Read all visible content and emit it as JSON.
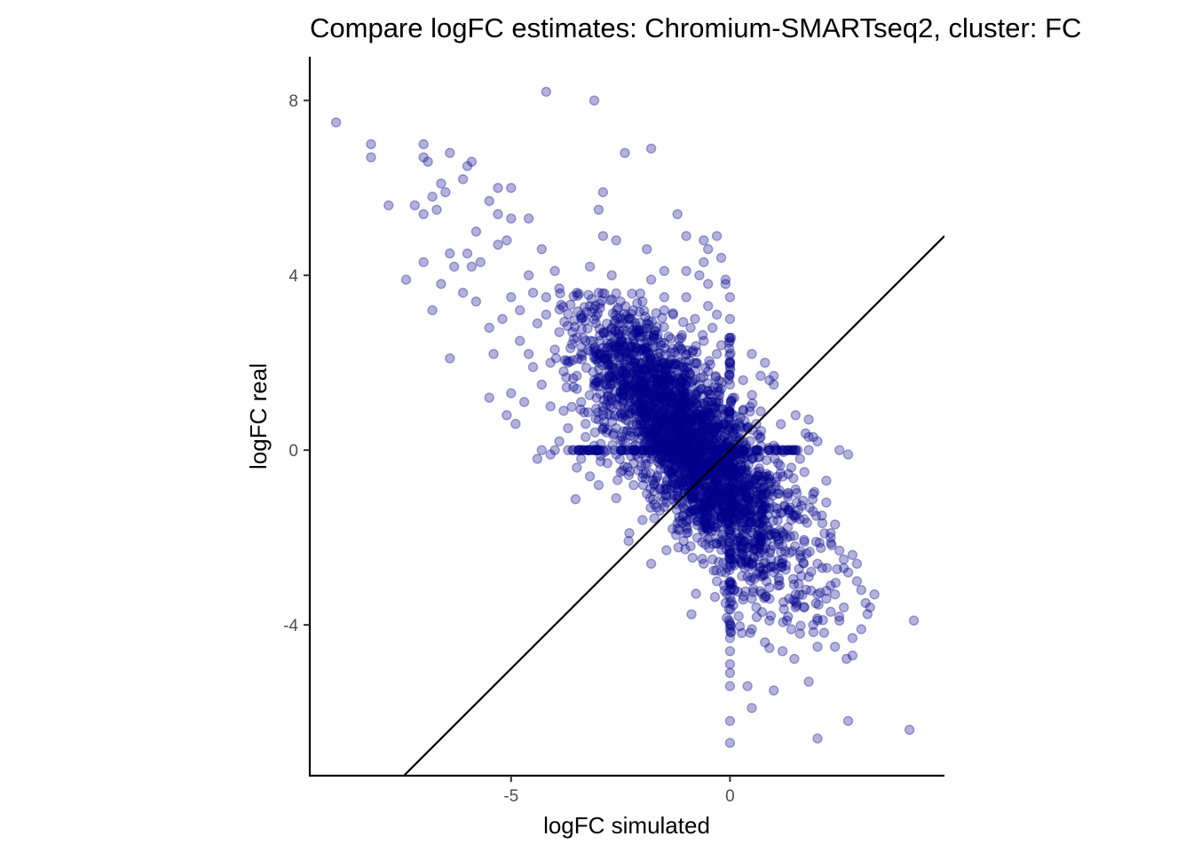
{
  "chart_data": {
    "type": "scatter",
    "title": "Compare logFC estimates: Chromium-SMARTseq2, cluster: FC",
    "xlabel": "logFC simulated",
    "ylabel": "logFC real",
    "xlim": [
      -9.6,
      4.9
    ],
    "ylim": [
      -7.45,
      9.0
    ],
    "x_ticks": [
      -5,
      0
    ],
    "x_tick_labels": [
      "-5",
      "0"
    ],
    "y_ticks": [
      -4,
      0,
      4,
      8
    ],
    "y_tick_labels": [
      "-4",
      "0",
      "4",
      "8"
    ],
    "grid": false,
    "legend": "none",
    "reference_line": {
      "slope": 1,
      "intercept": 0
    },
    "point_color": "#00008B",
    "point_opacity": 0.3,
    "points": [
      [
        -9.0,
        7.5
      ],
      [
        -8.2,
        7.0
      ],
      [
        -8.2,
        6.7
      ],
      [
        -7.0,
        7.0
      ],
      [
        -7.0,
        6.7
      ],
      [
        -6.9,
        6.6
      ],
      [
        -6.4,
        6.8
      ],
      [
        -5.9,
        6.6
      ],
      [
        -6.0,
        6.5
      ],
      [
        -6.1,
        6.2
      ],
      [
        -6.6,
        6.1
      ],
      [
        -6.5,
        5.9
      ],
      [
        -6.8,
        5.8
      ],
      [
        -6.7,
        5.5
      ],
      [
        -7.0,
        5.4
      ],
      [
        -7.2,
        5.6
      ],
      [
        -7.8,
        5.6
      ],
      [
        -5.3,
        6.0
      ],
      [
        -5.0,
        6.0
      ],
      [
        -5.5,
        5.7
      ],
      [
        -5.3,
        5.4
      ],
      [
        -5.0,
        5.3
      ],
      [
        -4.6,
        5.3
      ],
      [
        -5.8,
        5.0
      ],
      [
        -5.1,
        4.8
      ],
      [
        -5.3,
        4.7
      ],
      [
        -6.4,
        4.5
      ],
      [
        -6.0,
        4.5
      ],
      [
        -5.7,
        4.3
      ],
      [
        -5.9,
        4.2
      ],
      [
        -6.3,
        4.2
      ],
      [
        -6.6,
        3.8
      ],
      [
        -6.1,
        3.6
      ],
      [
        -5.8,
        3.4
      ],
      [
        -7.0,
        4.3
      ],
      [
        -7.4,
        3.9
      ],
      [
        -6.8,
        3.2
      ],
      [
        -6.4,
        2.1
      ],
      [
        -5.5,
        2.8
      ],
      [
        -5.4,
        2.2
      ],
      [
        -5.5,
        1.2
      ],
      [
        -5.0,
        1.3
      ],
      [
        -5.1,
        0.8
      ],
      [
        -4.9,
        0.6
      ],
      [
        -4.4,
        -0.2
      ],
      [
        -4.1,
        -0.1
      ],
      [
        -3.5,
        -0.4
      ],
      [
        -3.2,
        -0.6
      ],
      [
        -3.0,
        -0.8
      ],
      [
        -2.6,
        -1.1
      ],
      [
        -2.3,
        -1.9
      ],
      [
        -2.0,
        -1.6
      ],
      [
        -1.8,
        -2.6
      ],
      [
        -4.2,
        8.2
      ],
      [
        -3.1,
        8.0
      ],
      [
        -2.4,
        6.8
      ],
      [
        -1.8,
        6.9
      ],
      [
        -2.9,
        5.9
      ],
      [
        -3.0,
        5.5
      ],
      [
        -2.9,
        4.9
      ],
      [
        -2.6,
        4.8
      ],
      [
        -1.2,
        5.4
      ],
      [
        -1.9,
        4.6
      ],
      [
        -1.0,
        4.9
      ],
      [
        -0.6,
        4.8
      ],
      [
        -0.3,
        4.9
      ],
      [
        -0.5,
        4.6
      ],
      [
        -0.2,
        4.4
      ],
      [
        -0.6,
        4.3
      ],
      [
        -1.0,
        4.1
      ],
      [
        -1.8,
        3.9
      ],
      [
        -0.7,
        4.0
      ],
      [
        -0.5,
        3.8
      ],
      [
        -0.5,
        3.3
      ],
      [
        -0.1,
        3.9
      ],
      [
        -0.1,
        3.8
      ],
      [
        -0.3,
        3.1
      ],
      [
        -4.3,
        4.6
      ],
      [
        -4.0,
        4.1
      ],
      [
        -4.2,
        3.5
      ],
      [
        -4.4,
        2.9
      ],
      [
        -4.8,
        2.5
      ],
      [
        -4.6,
        2.2
      ],
      [
        -4.5,
        1.9
      ],
      [
        -4.3,
        1.5
      ],
      [
        -4.7,
        1.1
      ],
      [
        -4.1,
        1.0
      ],
      [
        -3.8,
        0.9
      ],
      [
        -3.7,
        0.5
      ],
      [
        -3.9,
        0.2
      ],
      [
        -3.6,
        0.0
      ],
      [
        -3.3,
        0.3
      ],
      [
        -3.4,
        -0.2
      ],
      [
        -3.1,
        0.1
      ],
      [
        -2.8,
        -0.3
      ],
      [
        -2.5,
        -0.5
      ],
      [
        -2.2,
        -0.8
      ],
      [
        -1.9,
        -1.0
      ],
      [
        -1.5,
        -1.3
      ],
      [
        -1.2,
        -1.8
      ],
      [
        -0.9,
        -2.2
      ],
      [
        -0.6,
        -2.6
      ],
      [
        -0.3,
        -3.0
      ],
      [
        -0.1,
        -3.5
      ],
      [
        0.2,
        -3.8
      ],
      [
        0.5,
        -4.1
      ],
      [
        0.8,
        -4.4
      ],
      [
        1.2,
        -4.6
      ],
      [
        1.6,
        -4.2
      ],
      [
        2.0,
        -4.5
      ],
      [
        2.4,
        -4.5
      ],
      [
        2.8,
        -4.7
      ],
      [
        3.1,
        -3.5
      ],
      [
        3.0,
        -3.2
      ],
      [
        2.8,
        -2.4
      ],
      [
        2.6,
        -2.7
      ],
      [
        2.3,
        -2.0
      ],
      [
        2.1,
        -1.5
      ],
      [
        1.9,
        -1.0
      ],
      [
        1.7,
        -0.5
      ],
      [
        1.6,
        -0.2
      ],
      [
        1.8,
        0.3
      ],
      [
        1.5,
        0.8
      ],
      [
        1.0,
        1.5
      ],
      [
        0.7,
        1.7
      ],
      [
        0.3,
        1.6
      ],
      [
        0.0,
        1.9
      ],
      [
        -0.2,
        2.4
      ],
      [
        -0.4,
        2.8
      ],
      [
        -0.8,
        3.0
      ],
      [
        -1.5,
        3.2
      ],
      [
        -2.3,
        3.0
      ],
      [
        -3.2,
        3.3
      ],
      [
        -3.6,
        2.7
      ],
      [
        -4.0,
        2.3
      ],
      [
        -3.8,
        1.8
      ],
      [
        -3.5,
        1.4
      ],
      [
        -3.1,
        1.6
      ],
      [
        -2.8,
        2.1
      ],
      [
        -2.5,
        2.5
      ],
      [
        -2.2,
        1.8
      ],
      [
        -1.9,
        2.2
      ],
      [
        -1.6,
        1.5
      ],
      [
        -1.3,
        1.9
      ],
      [
        -1.0,
        1.2
      ],
      [
        -0.7,
        0.9
      ],
      [
        -0.4,
        1.1
      ],
      [
        -0.1,
        0.6
      ],
      [
        0.2,
        0.3
      ],
      [
        0.5,
        -0.2
      ],
      [
        0.8,
        -0.6
      ],
      [
        1.1,
        -1.0
      ],
      [
        1.4,
        -1.6
      ],
      [
        1.7,
        -2.1
      ],
      [
        2.0,
        -2.6
      ],
      [
        2.3,
        -3.1
      ],
      [
        2.6,
        -3.6
      ],
      [
        2.0,
        -3.9
      ],
      [
        1.5,
        -3.3
      ],
      [
        1.0,
        -2.8
      ],
      [
        0.6,
        -2.3
      ],
      [
        0.3,
        -1.8
      ],
      [
        0.0,
        -1.4
      ],
      [
        -0.3,
        -1.0
      ],
      [
        -0.6,
        -0.6
      ],
      [
        -0.9,
        -0.2
      ],
      [
        -1.2,
        0.2
      ],
      [
        -1.5,
        0.6
      ],
      [
        -1.8,
        1.0
      ],
      [
        -2.1,
        0.4
      ],
      [
        -2.4,
        0.8
      ],
      [
        -2.7,
        1.2
      ],
      [
        -3.0,
        0.7
      ],
      [
        -2.6,
        -0.1
      ],
      [
        -2.0,
        0.0
      ],
      [
        -1.4,
        -0.5
      ],
      [
        -0.8,
        -1.4
      ],
      [
        -0.2,
        -2.1
      ],
      [
        0.4,
        -2.9
      ],
      [
        0.9,
        -3.4
      ],
      [
        1.3,
        -3.9
      ],
      [
        0.6,
        -3.6
      ],
      [
        0.1,
        -3.2
      ],
      [
        -0.4,
        -2.5
      ],
      [
        -1.0,
        -1.9
      ],
      [
        -1.6,
        -0.9
      ],
      [
        -2.2,
        -0.3
      ],
      [
        -2.9,
        0.5
      ],
      [
        -3.4,
        1.1
      ],
      [
        -3.7,
        2.0
      ],
      [
        -3.3,
        2.5
      ],
      [
        -2.9,
        2.7
      ],
      [
        -2.0,
        2.6
      ],
      [
        -1.1,
        2.3
      ],
      [
        -0.5,
        1.8
      ],
      [
        0.1,
        1.2
      ],
      [
        0.6,
        0.6
      ],
      [
        1.0,
        0.1
      ],
      [
        1.4,
        -0.4
      ],
      [
        1.2,
        -2.2
      ],
      [
        0.8,
        -1.6
      ],
      [
        0.4,
        -1.1
      ],
      [
        -0.1,
        -0.4
      ],
      [
        -0.5,
        0.2
      ],
      [
        -0.9,
        0.7
      ],
      [
        -1.3,
        1.1
      ],
      [
        -1.7,
        0.3
      ],
      [
        -2.1,
        1.4
      ],
      [
        -2.5,
        1.6
      ],
      [
        0.0,
        -4.0
      ],
      [
        0.0,
        -4.3
      ],
      [
        0.0,
        -4.6
      ],
      [
        0.0,
        -4.9
      ],
      [
        0.0,
        -5.1
      ],
      [
        0.0,
        -5.4
      ],
      [
        0.0,
        -6.2
      ],
      [
        0.0,
        -6.7
      ],
      [
        0.4,
        -5.4
      ],
      [
        0.5,
        -5.9
      ],
      [
        1.0,
        -5.5
      ],
      [
        1.8,
        -5.3
      ],
      [
        2.0,
        -6.6
      ],
      [
        2.7,
        -6.2
      ],
      [
        4.1,
        -6.4
      ],
      [
        4.2,
        -3.9
      ],
      [
        3.2,
        -3.6
      ],
      [
        3.3,
        -3.3
      ],
      [
        3.0,
        -4.1
      ],
      [
        2.8,
        -4.3
      ],
      [
        2.5,
        -3.9
      ],
      [
        0.0,
        3.5
      ],
      [
        0.0,
        3.0
      ],
      [
        0.0,
        2.5
      ],
      [
        0.0,
        2.0
      ],
      [
        0.0,
        1.5
      ],
      [
        0.0,
        1.0
      ],
      [
        0.0,
        0.5
      ],
      [
        0.0,
        -0.5
      ],
      [
        0.0,
        -1.0
      ],
      [
        0.0,
        -1.5
      ],
      [
        0.0,
        -2.0
      ],
      [
        0.0,
        -2.5
      ],
      [
        0.0,
        -3.0
      ],
      [
        0.0,
        -3.5
      ],
      [
        -4.3,
        0.0
      ],
      [
        -4.0,
        0.0
      ],
      [
        -3.7,
        0.0
      ],
      [
        -3.4,
        0.0
      ],
      [
        -3.1,
        0.0
      ],
      [
        -2.8,
        0.0
      ],
      [
        -2.5,
        0.0
      ],
      [
        -2.2,
        0.0
      ],
      [
        -1.9,
        0.0
      ],
      [
        -1.6,
        0.0
      ],
      [
        -1.3,
        0.0
      ],
      [
        -1.0,
        0.0
      ],
      [
        -0.7,
        0.0
      ],
      [
        -0.4,
        0.0
      ],
      [
        0.3,
        0.0
      ],
      [
        0.6,
        0.0
      ],
      [
        0.9,
        0.0
      ],
      [
        1.2,
        0.0
      ],
      [
        1.5,
        0.0
      ],
      [
        1.8,
        0.0
      ],
      [
        1.8,
        0.7
      ],
      [
        1.9,
        0.3
      ],
      [
        2.0,
        0.2
      ],
      [
        2.5,
        0.0
      ],
      [
        2.7,
        -0.1
      ],
      [
        2.2,
        -0.7
      ],
      [
        2.2,
        -1.2
      ],
      [
        2.4,
        -1.7
      ],
      [
        2.5,
        -2.3
      ],
      [
        2.7,
        -2.8
      ],
      [
        2.9,
        -2.6
      ],
      [
        1.0,
        1.7
      ],
      [
        0.8,
        2.0
      ],
      [
        0.9,
        1.6
      ],
      [
        0.5,
        2.2
      ],
      [
        -4.8,
        3.2
      ],
      [
        -4.5,
        3.6
      ],
      [
        -5.2,
        3.0
      ],
      [
        -5.0,
        3.5
      ],
      [
        -4.6,
        4.0
      ],
      [
        -3.9,
        3.7
      ],
      [
        -3.5,
        3.6
      ],
      [
        -3.0,
        3.6
      ],
      [
        -2.5,
        3.4
      ],
      [
        -2.0,
        3.4
      ],
      [
        -1.5,
        3.5
      ],
      [
        -1.0,
        3.5
      ],
      [
        -3.2,
        4.2
      ],
      [
        -2.7,
        4.0
      ],
      [
        -1.5,
        4.1
      ],
      [
        -1.3,
        3.1
      ],
      [
        -0.9,
        2.8
      ],
      [
        -0.6,
        2.5
      ],
      [
        -0.3,
        2.2
      ],
      [
        0.3,
        0.9
      ],
      [
        0.7,
        0.3
      ],
      [
        1.1,
        -0.3
      ],
      [
        1.5,
        -0.9
      ],
      [
        1.9,
        -1.4
      ],
      [
        2.3,
        -1.9
      ],
      [
        2.6,
        -2.5
      ],
      [
        2.9,
        -3.0
      ],
      [
        2.4,
        -3.3
      ],
      [
        1.8,
        -2.9
      ],
      [
        1.2,
        -2.5
      ],
      [
        0.7,
        -2.0
      ],
      [
        0.2,
        -1.5
      ],
      [
        -0.3,
        -1.3
      ],
      [
        -0.8,
        -1.0
      ],
      [
        -1.3,
        -0.6
      ],
      [
        -1.8,
        -0.2
      ],
      [
        -2.4,
        0.2
      ],
      [
        -2.9,
        0.9
      ],
      [
        -3.5,
        1.7
      ],
      [
        -3.9,
        2.7
      ],
      [
        -4.2,
        3.1
      ],
      [
        -4.1,
        2.0
      ],
      [
        -3.3,
        0.6
      ],
      [
        -2.6,
        0.5
      ],
      [
        -2.0,
        1.9
      ],
      [
        -1.4,
        2.6
      ],
      [
        -0.8,
        2.0
      ],
      [
        -0.2,
        1.4
      ],
      [
        0.4,
        0.5
      ],
      [
        1.0,
        -1.3
      ],
      [
        1.6,
        -2.4
      ],
      [
        2.2,
        -3.4
      ],
      [
        1.7,
        -3.6
      ],
      [
        1.1,
        -3.1
      ],
      [
        0.5,
        -2.6
      ],
      [
        -0.1,
        -2.8
      ],
      [
        -0.5,
        -1.7
      ],
      [
        -1.1,
        -1.2
      ],
      [
        -1.7,
        -0.7
      ],
      [
        -2.3,
        1.1
      ],
      [
        -2.7,
        1.9
      ],
      [
        -3.1,
        2.3
      ],
      [
        0.5,
        -3.4
      ],
      [
        0.9,
        -3.9
      ],
      [
        1.4,
        -4.1
      ],
      [
        1.9,
        -4.0
      ],
      [
        2.3,
        -3.7
      ],
      [
        2.0,
        -3.3
      ],
      [
        1.3,
        -2.0
      ],
      [
        0.9,
        -1.2
      ],
      [
        0.5,
        -0.8
      ],
      [
        0.1,
        -0.9
      ],
      [
        -0.3,
        0.5
      ],
      [
        -0.7,
        1.5
      ],
      [
        -1.1,
        1.6
      ],
      [
        -1.5,
        2.0
      ],
      [
        -1.9,
        2.9
      ],
      [
        -2.3,
        2.2
      ],
      [
        -2.7,
        2.8
      ],
      [
        -3.0,
        2.0
      ]
    ]
  }
}
